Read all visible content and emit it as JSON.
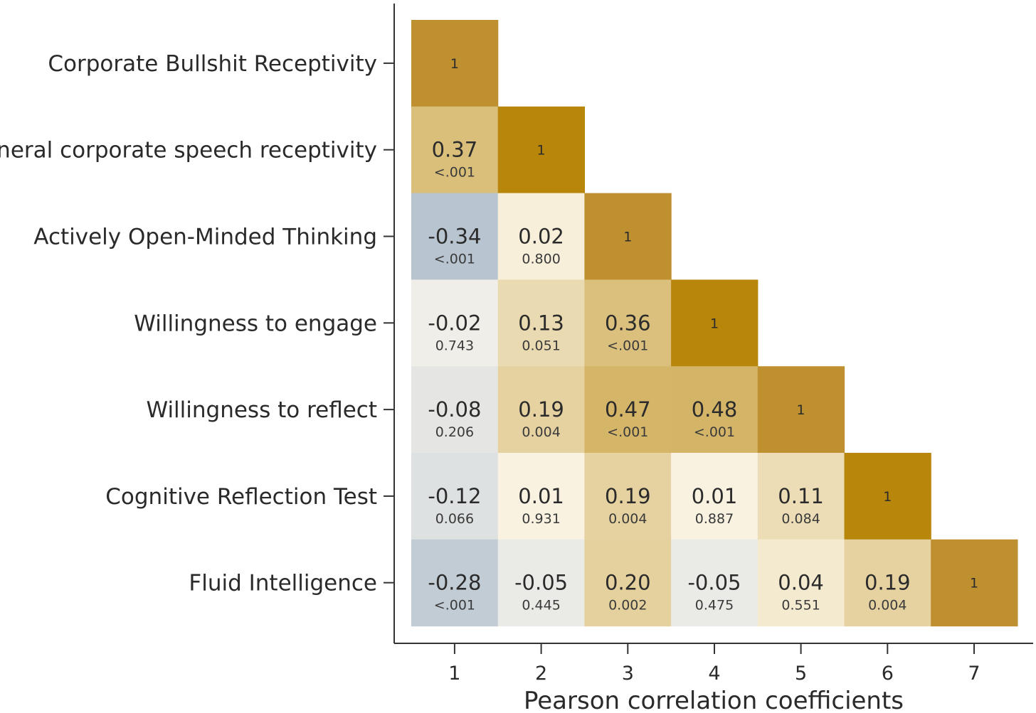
{
  "chart_data": {
    "type": "heatmap",
    "title": "",
    "xlabel": "Pearson correlation coefficients",
    "ylabel": "",
    "row_labels": [
      "Corporate Bullshit Receptivity",
      "General corporate speech receptivity",
      "Actively Open-Minded Thinking",
      "Willingness to engage",
      "Willingness to reflect",
      "Cognitive Reflection Test",
      "Fluid Intelligence"
    ],
    "column_labels": [
      "1",
      "2",
      "3",
      "4",
      "5",
      "6",
      "7"
    ],
    "cells": [
      [
        {
          "r": "1",
          "p": ""
        }
      ],
      [
        {
          "r": "0.37",
          "p": "<.001"
        },
        {
          "r": "1",
          "p": ""
        }
      ],
      [
        {
          "r": "-0.34",
          "p": "<.001"
        },
        {
          "r": "0.02",
          "p": "0.800"
        },
        {
          "r": "1",
          "p": ""
        }
      ],
      [
        {
          "r": "-0.02",
          "p": "0.743"
        },
        {
          "r": "0.13",
          "p": "0.051"
        },
        {
          "r": "0.36",
          "p": "<.001"
        },
        {
          "r": "1",
          "p": ""
        }
      ],
      [
        {
          "r": "-0.08",
          "p": "0.206"
        },
        {
          "r": "0.19",
          "p": "0.004"
        },
        {
          "r": "0.47",
          "p": "<.001"
        },
        {
          "r": "0.48",
          "p": "<.001"
        },
        {
          "r": "1",
          "p": ""
        }
      ],
      [
        {
          "r": "-0.12",
          "p": "0.066"
        },
        {
          "r": "0.01",
          "p": "0.931"
        },
        {
          "r": "0.19",
          "p": "0.004"
        },
        {
          "r": "0.01",
          "p": "0.887"
        },
        {
          "r": "0.11",
          "p": "0.084"
        },
        {
          "r": "1",
          "p": ""
        }
      ],
      [
        {
          "r": "-0.28",
          "p": "<.001"
        },
        {
          "r": "-0.05",
          "p": "0.445"
        },
        {
          "r": "0.20",
          "p": "0.002"
        },
        {
          "r": "-0.05",
          "p": "0.475"
        },
        {
          "r": "0.04",
          "p": "0.551"
        },
        {
          "r": "0.19",
          "p": "0.004"
        },
        {
          "r": "1",
          "p": ""
        }
      ]
    ],
    "color_scale": {
      "negative": "#b8c4d0",
      "zero": "#fdf9ee",
      "positive": "#b8860b"
    }
  }
}
